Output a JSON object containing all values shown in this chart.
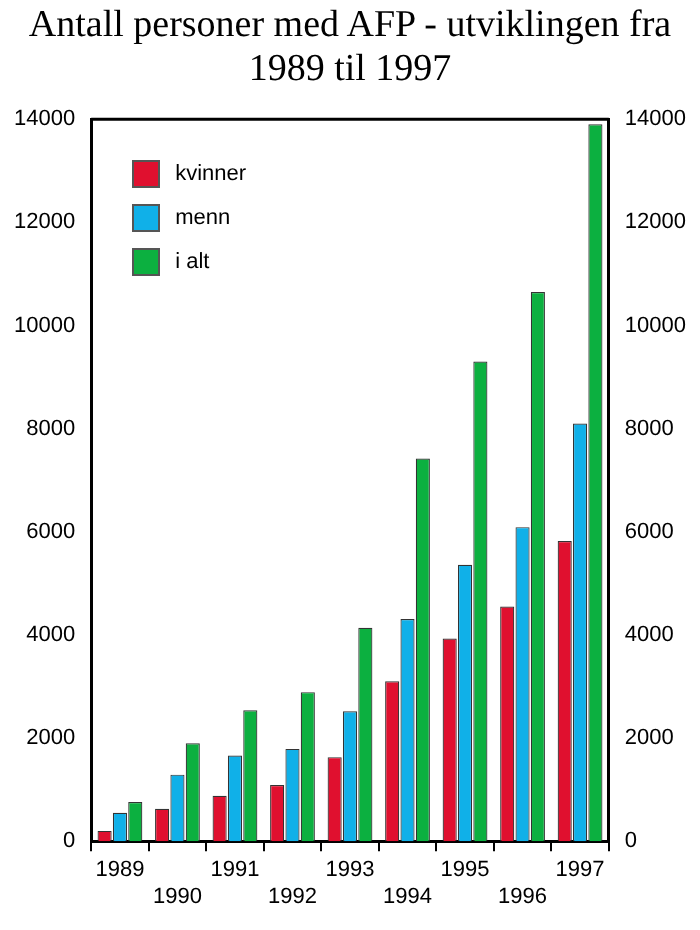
{
  "chart_data": {
    "type": "bar",
    "title": "Antall personer med AFP - utviklingen fra 1989 til 1997",
    "categories": [
      "1989",
      "1990",
      "1991",
      "1992",
      "1993",
      "1994",
      "1995",
      "1996",
      "1997"
    ],
    "series": [
      {
        "name": "kvinner",
        "color": "#e0102f",
        "values": [
          200,
          630,
          880,
          1090,
          1630,
          3100,
          3930,
          4550,
          5820
        ]
      },
      {
        "name": "menn",
        "color": "#10b0e8",
        "values": [
          550,
          1290,
          1660,
          1790,
          2520,
          4310,
          5360,
          6090,
          8100
        ]
      },
      {
        "name": "i alt",
        "color": "#0cb040",
        "values": [
          760,
          1900,
          2540,
          2890,
          4140,
          7420,
          9300,
          10650,
          13900
        ]
      }
    ],
    "ylim": [
      0,
      14000
    ],
    "yticks": [
      0,
      2000,
      4000,
      6000,
      8000,
      10000,
      12000,
      14000
    ],
    "y2lim": [
      0,
      14000
    ],
    "y2ticks": [
      0,
      2000,
      4000,
      6000,
      8000,
      10000,
      12000,
      14000
    ],
    "grid": false,
    "legend": "top left"
  }
}
